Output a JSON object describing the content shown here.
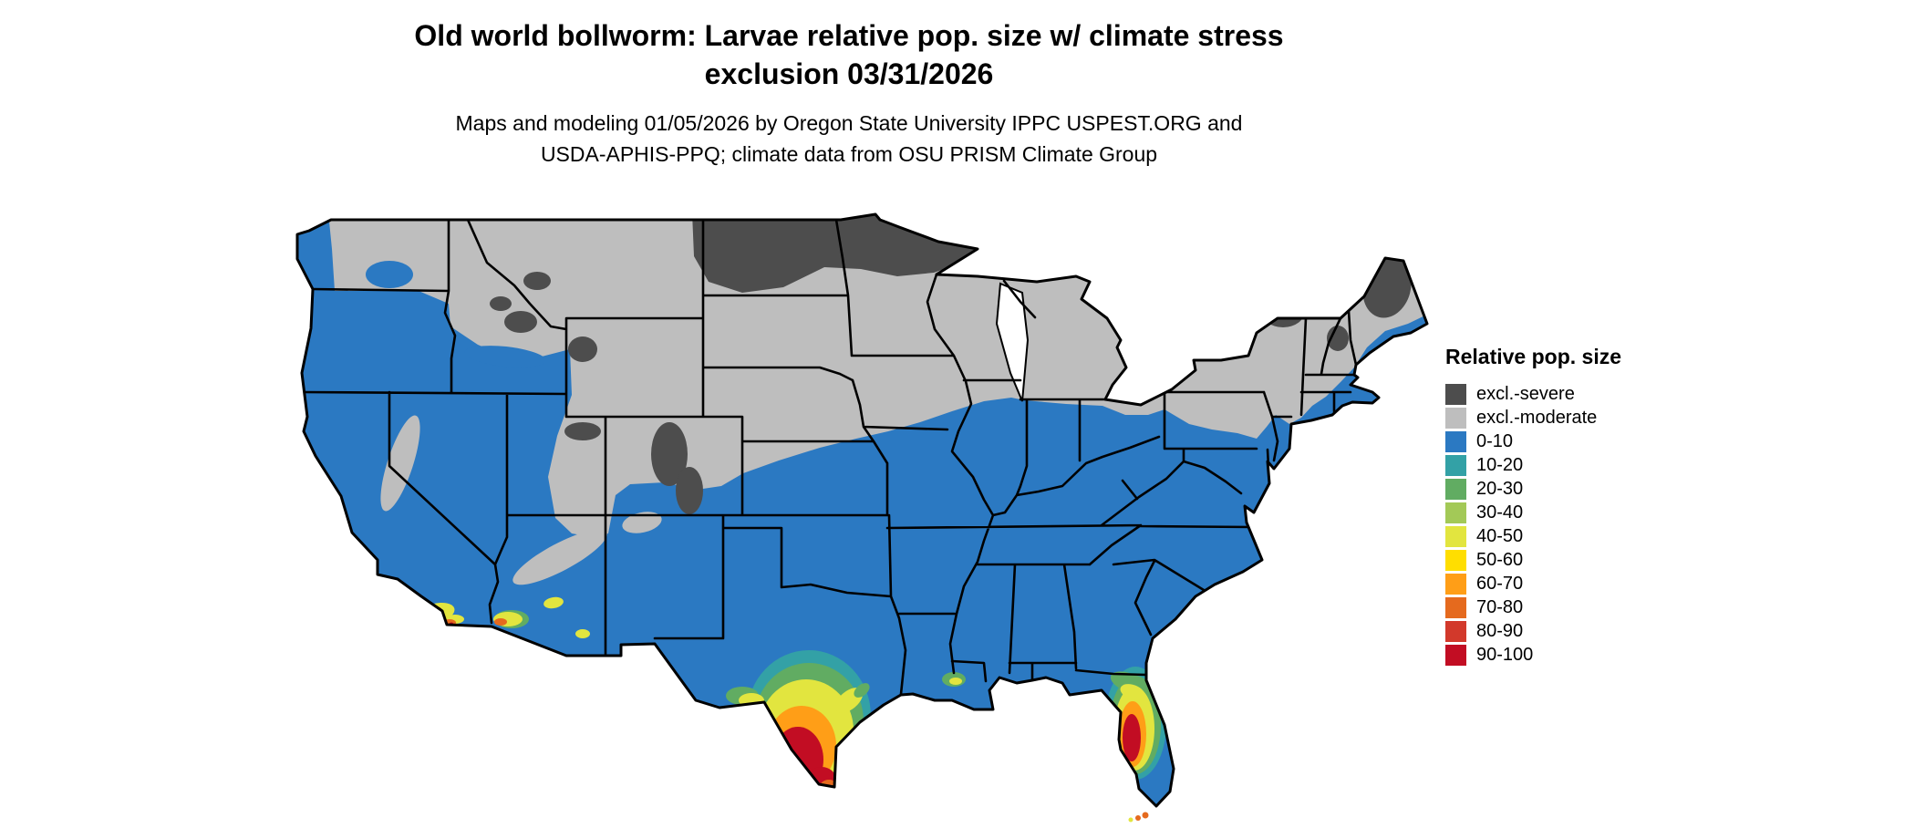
{
  "title": {
    "line1": "Old world bollworm: Larvae relative pop. size w/ climate stress",
    "line2": "exclusion 03/31/2026"
  },
  "subtitle": {
    "line1": "Maps and modeling 01/05/2026 by Oregon State University IPPC USPEST.ORG and",
    "line2": "USDA-APHIS-PPQ; climate data from OSU PRISM Climate Group"
  },
  "legend": {
    "title": "Relative pop. size",
    "items": [
      {
        "label": "excl.-severe",
        "color": "#4D4D4D"
      },
      {
        "label": "excl.-moderate",
        "color": "#BEBEBE"
      },
      {
        "label": "0-10",
        "color": "#2B79C2"
      },
      {
        "label": "10-20",
        "color": "#33A1A6"
      },
      {
        "label": "20-30",
        "color": "#61AC62"
      },
      {
        "label": "30-40",
        "color": "#A3C957"
      },
      {
        "label": "40-50",
        "color": "#E2E53F"
      },
      {
        "label": "50-60",
        "color": "#FFDE00"
      },
      {
        "label": "60-70",
        "color": "#FF9E17"
      },
      {
        "label": "70-80",
        "color": "#E56A1E"
      },
      {
        "label": "80-90",
        "color": "#D2392B"
      },
      {
        "label": "90-100",
        "color": "#C20D23"
      }
    ]
  },
  "map": {
    "region": "Contiguous United States",
    "base_color": "#2B79C2",
    "state_border_color": "#000000",
    "background_color": "#FFFFFF",
    "high_population_hotspots": [
      "southern Texas",
      "central Florida peninsula",
      "southern California coast",
      "Yuma area Arizona",
      "Louisiana Gulf coast spot"
    ],
    "severe_exclusion_areas": [
      "eastern North Dakota through northern Minnesota and upper Great Lakes",
      "northern Maine",
      "Adirondacks",
      "Colorado Rockies"
    ],
    "moderate_exclusion_areas": [
      "northern plains",
      "mountain West",
      "upper Midwest",
      "Great Lakes states",
      "interior Northeast"
    ]
  }
}
